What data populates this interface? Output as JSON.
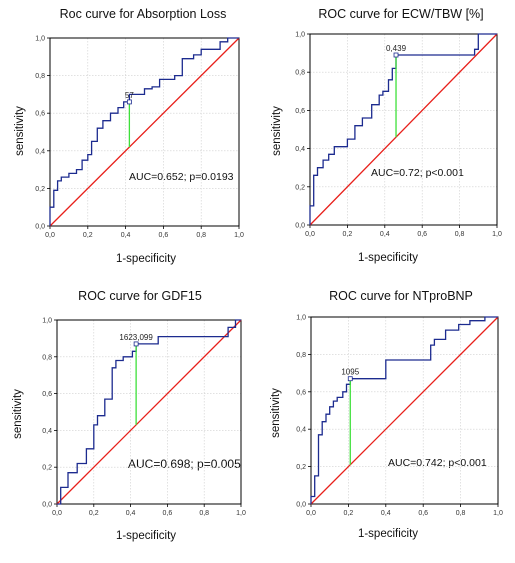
{
  "chart_data": [
    {
      "type": "line",
      "title": "Roc curve for Absorption Loss",
      "xlabel": "1-specificity",
      "ylabel": "sensitivity",
      "xlim": [
        0,
        1
      ],
      "ylim": [
        0,
        1
      ],
      "xticks": [
        "0,0",
        "0,2",
        "0,4",
        "0,6",
        "0,8",
        "1,0"
      ],
      "yticks": [
        "0,0",
        "0,2",
        "0,4",
        "0,6",
        "0,8",
        "1,0"
      ],
      "grid": true,
      "auc_text": "AUC=0.652; p=0.0193",
      "cutoff_label": "57",
      "cutoff_point": {
        "x": 0.42,
        "y": 0.66
      },
      "series": [
        {
          "x": [
            0.0,
            0.0,
            0.02,
            0.02,
            0.04,
            0.04,
            0.06,
            0.06,
            0.1,
            0.1,
            0.14,
            0.14,
            0.17,
            0.17,
            0.2,
            0.2,
            0.22,
            0.22,
            0.25,
            0.25,
            0.28,
            0.28,
            0.32,
            0.32,
            0.36,
            0.36,
            0.39,
            0.39,
            0.42,
            0.42,
            0.46,
            0.46,
            0.5,
            0.5,
            0.54,
            0.54,
            0.58,
            0.58,
            0.66,
            0.66,
            0.7,
            0.7,
            0.76,
            0.76,
            0.8,
            0.8,
            0.9,
            0.9,
            0.94,
            0.94,
            1.0
          ],
          "y": [
            0.0,
            0.1,
            0.1,
            0.19,
            0.19,
            0.24,
            0.24,
            0.26,
            0.26,
            0.28,
            0.28,
            0.3,
            0.3,
            0.35,
            0.35,
            0.38,
            0.38,
            0.45,
            0.45,
            0.52,
            0.52,
            0.56,
            0.56,
            0.6,
            0.6,
            0.63,
            0.63,
            0.66,
            0.66,
            0.7,
            0.7,
            0.7,
            0.7,
            0.73,
            0.73,
            0.74,
            0.74,
            0.78,
            0.78,
            0.8,
            0.8,
            0.89,
            0.89,
            0.91,
            0.91,
            0.94,
            0.94,
            0.98,
            0.98,
            1.0,
            1.0
          ]
        }
      ]
    },
    {
      "type": "line",
      "title": "ROC curve for ECW/TBW [%]",
      "xlabel": "1-specificity",
      "ylabel": "sensitivity",
      "xlim": [
        0,
        1
      ],
      "ylim": [
        0,
        1
      ],
      "xticks": [
        "0,0",
        "0,2",
        "0,4",
        "0,6",
        "0,8",
        "1,0"
      ],
      "yticks": [
        "0,0",
        "0,2",
        "0,4",
        "0,6",
        "0,8",
        "1,0"
      ],
      "grid": true,
      "auc_text": "AUC=0.72; p<0.001",
      "cutoff_label": "0,439",
      "cutoff_point": {
        "x": 0.46,
        "y": 0.89
      },
      "series": [
        {
          "x": [
            0.0,
            0.0,
            0.02,
            0.02,
            0.04,
            0.04,
            0.07,
            0.07,
            0.1,
            0.1,
            0.13,
            0.13,
            0.2,
            0.2,
            0.24,
            0.24,
            0.28,
            0.28,
            0.33,
            0.33,
            0.37,
            0.37,
            0.39,
            0.39,
            0.42,
            0.42,
            0.44,
            0.44,
            0.46,
            0.46,
            0.88,
            0.88,
            0.9,
            0.9,
            1.0
          ],
          "y": [
            0.0,
            0.1,
            0.1,
            0.26,
            0.26,
            0.3,
            0.3,
            0.34,
            0.34,
            0.37,
            0.37,
            0.41,
            0.41,
            0.45,
            0.45,
            0.52,
            0.52,
            0.56,
            0.56,
            0.63,
            0.63,
            0.68,
            0.68,
            0.7,
            0.7,
            0.76,
            0.76,
            0.82,
            0.82,
            0.89,
            0.89,
            0.92,
            0.92,
            1.0,
            1.0
          ]
        }
      ]
    },
    {
      "type": "line",
      "title": "ROC curve for GDF15",
      "xlabel": "1-specificity",
      "ylabel": "sensitivity",
      "xlim": [
        0,
        1
      ],
      "ylim": [
        0,
        1
      ],
      "xticks": [
        "0,0",
        "0,2",
        "0,4",
        "0,6",
        "0,8",
        "1,0"
      ],
      "yticks": [
        "0,0",
        "0,2",
        "0,4",
        "0,6",
        "0,8",
        "1,0"
      ],
      "grid": true,
      "auc_text": "AUC=0.698; p=0.005",
      "cutoff_label": "1623,099",
      "cutoff_point": {
        "x": 0.43,
        "y": 0.87
      },
      "series": [
        {
          "x": [
            0.0,
            0.02,
            0.02,
            0.06,
            0.06,
            0.11,
            0.11,
            0.16,
            0.16,
            0.2,
            0.2,
            0.22,
            0.22,
            0.26,
            0.26,
            0.3,
            0.3,
            0.32,
            0.32,
            0.36,
            0.36,
            0.41,
            0.41,
            0.43,
            0.43,
            0.55,
            0.55,
            0.93,
            0.93,
            0.97,
            0.97,
            1.0
          ],
          "y": [
            0.0,
            0.0,
            0.09,
            0.09,
            0.17,
            0.17,
            0.22,
            0.22,
            0.3,
            0.3,
            0.43,
            0.43,
            0.48,
            0.48,
            0.57,
            0.57,
            0.74,
            0.74,
            0.78,
            0.78,
            0.8,
            0.8,
            0.83,
            0.83,
            0.87,
            0.87,
            0.91,
            0.91,
            0.96,
            0.96,
            1.0,
            1.0
          ]
        }
      ]
    },
    {
      "type": "line",
      "title": "ROC curve for NTproBNP",
      "xlabel": "1-specificity",
      "ylabel": "sensitivity",
      "xlim": [
        0,
        1
      ],
      "ylim": [
        0,
        1
      ],
      "xticks": [
        "0,0",
        "0,2",
        "0,4",
        "0,6",
        "0,8",
        "1,0"
      ],
      "yticks": [
        "0,0",
        "0,2",
        "0,4",
        "0,6",
        "0,8",
        "1,0"
      ],
      "grid": true,
      "auc_text": "AUC=0.742; p<0.001",
      "cutoff_label": "1095",
      "cutoff_point": {
        "x": 0.21,
        "y": 0.67
      },
      "series": [
        {
          "x": [
            0.0,
            0.0,
            0.02,
            0.02,
            0.04,
            0.04,
            0.06,
            0.06,
            0.08,
            0.08,
            0.1,
            0.1,
            0.12,
            0.12,
            0.14,
            0.14,
            0.17,
            0.17,
            0.19,
            0.19,
            0.21,
            0.21,
            0.4,
            0.4,
            0.64,
            0.64,
            0.66,
            0.66,
            0.72,
            0.72,
            0.79,
            0.79,
            0.85,
            0.85,
            0.93,
            0.93,
            1.0
          ],
          "y": [
            0.0,
            0.04,
            0.04,
            0.15,
            0.15,
            0.37,
            0.37,
            0.44,
            0.44,
            0.48,
            0.48,
            0.52,
            0.52,
            0.55,
            0.55,
            0.57,
            0.57,
            0.6,
            0.6,
            0.64,
            0.64,
            0.67,
            0.67,
            0.77,
            0.77,
            0.85,
            0.85,
            0.88,
            0.88,
            0.93,
            0.93,
            0.96,
            0.96,
            0.98,
            0.98,
            1.0,
            1.0
          ]
        }
      ]
    }
  ]
}
